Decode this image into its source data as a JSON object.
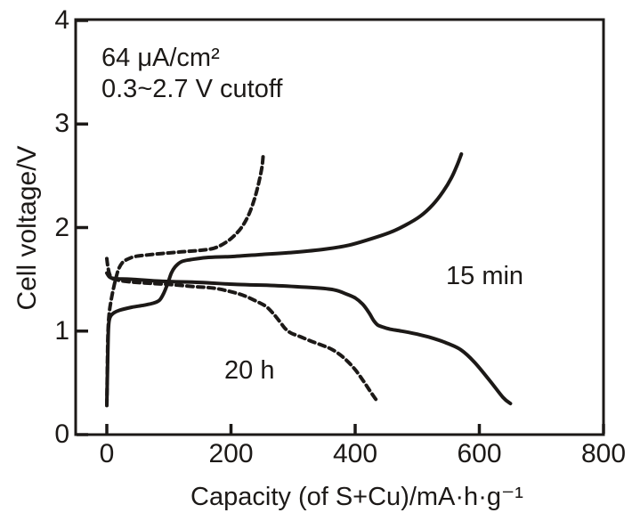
{
  "figure": {
    "background": "#ffffff",
    "ink": "#1c1917"
  },
  "chart_data": {
    "type": "line",
    "title": "",
    "xlabel": "Capacity (of S+Cu)/mA·h·g⁻¹",
    "ylabel": "Cell voltage/V",
    "xlim": [
      0,
      800
    ],
    "ylim": [
      0,
      4
    ],
    "x_ticks": [
      0,
      200,
      400,
      600,
      800
    ],
    "y_ticks": [
      0,
      1,
      2,
      3,
      4
    ],
    "grid": false,
    "legend": "none",
    "annotations": [
      {
        "id": "current-density",
        "text": "64 μA/cm²"
      },
      {
        "id": "voltage-cutoff",
        "text": "0.3~2.7 V cutoff"
      }
    ],
    "curve_labels": [
      {
        "id": "label-15min",
        "text": "15 min",
        "x": 615,
        "y": 1.53
      },
      {
        "id": "label-20h",
        "text": "20 h",
        "x": 237,
        "y": 0.62
      }
    ],
    "series": [
      {
        "id": "charge-15min",
        "name": "15 min charge",
        "style": "solid",
        "points": [
          [
            0,
            0.3
          ],
          [
            1,
            0.6
          ],
          [
            2,
            0.9
          ],
          [
            3,
            1.06
          ],
          [
            5,
            1.13
          ],
          [
            10,
            1.17
          ],
          [
            20,
            1.2
          ],
          [
            40,
            1.23
          ],
          [
            60,
            1.25
          ],
          [
            75,
            1.27
          ],
          [
            85,
            1.3
          ],
          [
            92,
            1.37
          ],
          [
            98,
            1.46
          ],
          [
            104,
            1.56
          ],
          [
            110,
            1.62
          ],
          [
            120,
            1.67
          ],
          [
            135,
            1.69
          ],
          [
            160,
            1.71
          ],
          [
            200,
            1.72
          ],
          [
            250,
            1.74
          ],
          [
            300,
            1.76
          ],
          [
            350,
            1.79
          ],
          [
            390,
            1.83
          ],
          [
            425,
            1.89
          ],
          [
            455,
            1.95
          ],
          [
            480,
            2.02
          ],
          [
            505,
            2.11
          ],
          [
            525,
            2.22
          ],
          [
            542,
            2.35
          ],
          [
            555,
            2.48
          ],
          [
            564,
            2.6
          ],
          [
            571,
            2.71
          ]
        ]
      },
      {
        "id": "discharge-15min",
        "name": "15 min discharge",
        "style": "solid",
        "points": [
          [
            0,
            1.56
          ],
          [
            5,
            1.52
          ],
          [
            15,
            1.505
          ],
          [
            40,
            1.5
          ],
          [
            90,
            1.48
          ],
          [
            150,
            1.47
          ],
          [
            210,
            1.45
          ],
          [
            270,
            1.44
          ],
          [
            330,
            1.42
          ],
          [
            365,
            1.4
          ],
          [
            385,
            1.36
          ],
          [
            400,
            1.32
          ],
          [
            412,
            1.26
          ],
          [
            422,
            1.18
          ],
          [
            430,
            1.1
          ],
          [
            436,
            1.06
          ],
          [
            444,
            1.04
          ],
          [
            455,
            1.02
          ],
          [
            475,
            1.0
          ],
          [
            500,
            0.97
          ],
          [
            520,
            0.94
          ],
          [
            545,
            0.89
          ],
          [
            570,
            0.82
          ],
          [
            592,
            0.7
          ],
          [
            617,
            0.52
          ],
          [
            638,
            0.36
          ],
          [
            650,
            0.3
          ]
        ]
      },
      {
        "id": "charge-20h",
        "name": "20 h charge",
        "style": "dashed",
        "points": [
          [
            0,
            0.28
          ],
          [
            1,
            0.7
          ],
          [
            2,
            1.0
          ],
          [
            4,
            1.18
          ],
          [
            7,
            1.3
          ],
          [
            11,
            1.42
          ],
          [
            15,
            1.52
          ],
          [
            19,
            1.6
          ],
          [
            25,
            1.66
          ],
          [
            32,
            1.69
          ],
          [
            45,
            1.72
          ],
          [
            65,
            1.735
          ],
          [
            90,
            1.75
          ],
          [
            120,
            1.765
          ],
          [
            150,
            1.78
          ],
          [
            172,
            1.8
          ],
          [
            190,
            1.85
          ],
          [
            205,
            1.92
          ],
          [
            218,
            2.01
          ],
          [
            229,
            2.13
          ],
          [
            238,
            2.28
          ],
          [
            245,
            2.44
          ],
          [
            250,
            2.59
          ],
          [
            252,
            2.71
          ]
        ]
      },
      {
        "id": "discharge-20h",
        "name": "20 h discharge",
        "style": "dashed",
        "points": [
          [
            0,
            1.7
          ],
          [
            2,
            1.61
          ],
          [
            5,
            1.54
          ],
          [
            10,
            1.505
          ],
          [
            30,
            1.48
          ],
          [
            60,
            1.465
          ],
          [
            100,
            1.45
          ],
          [
            140,
            1.43
          ],
          [
            172,
            1.415
          ],
          [
            200,
            1.38
          ],
          [
            222,
            1.34
          ],
          [
            242,
            1.285
          ],
          [
            256,
            1.24
          ],
          [
            268,
            1.17
          ],
          [
            280,
            1.08
          ],
          [
            288,
            1.02
          ],
          [
            297,
            0.98
          ],
          [
            312,
            0.945
          ],
          [
            330,
            0.9
          ],
          [
            348,
            0.86
          ],
          [
            362,
            0.825
          ],
          [
            376,
            0.77
          ],
          [
            389,
            0.7
          ],
          [
            401,
            0.62
          ],
          [
            413,
            0.52
          ],
          [
            423,
            0.43
          ],
          [
            431,
            0.36
          ],
          [
            436,
            0.32
          ]
        ]
      }
    ]
  }
}
